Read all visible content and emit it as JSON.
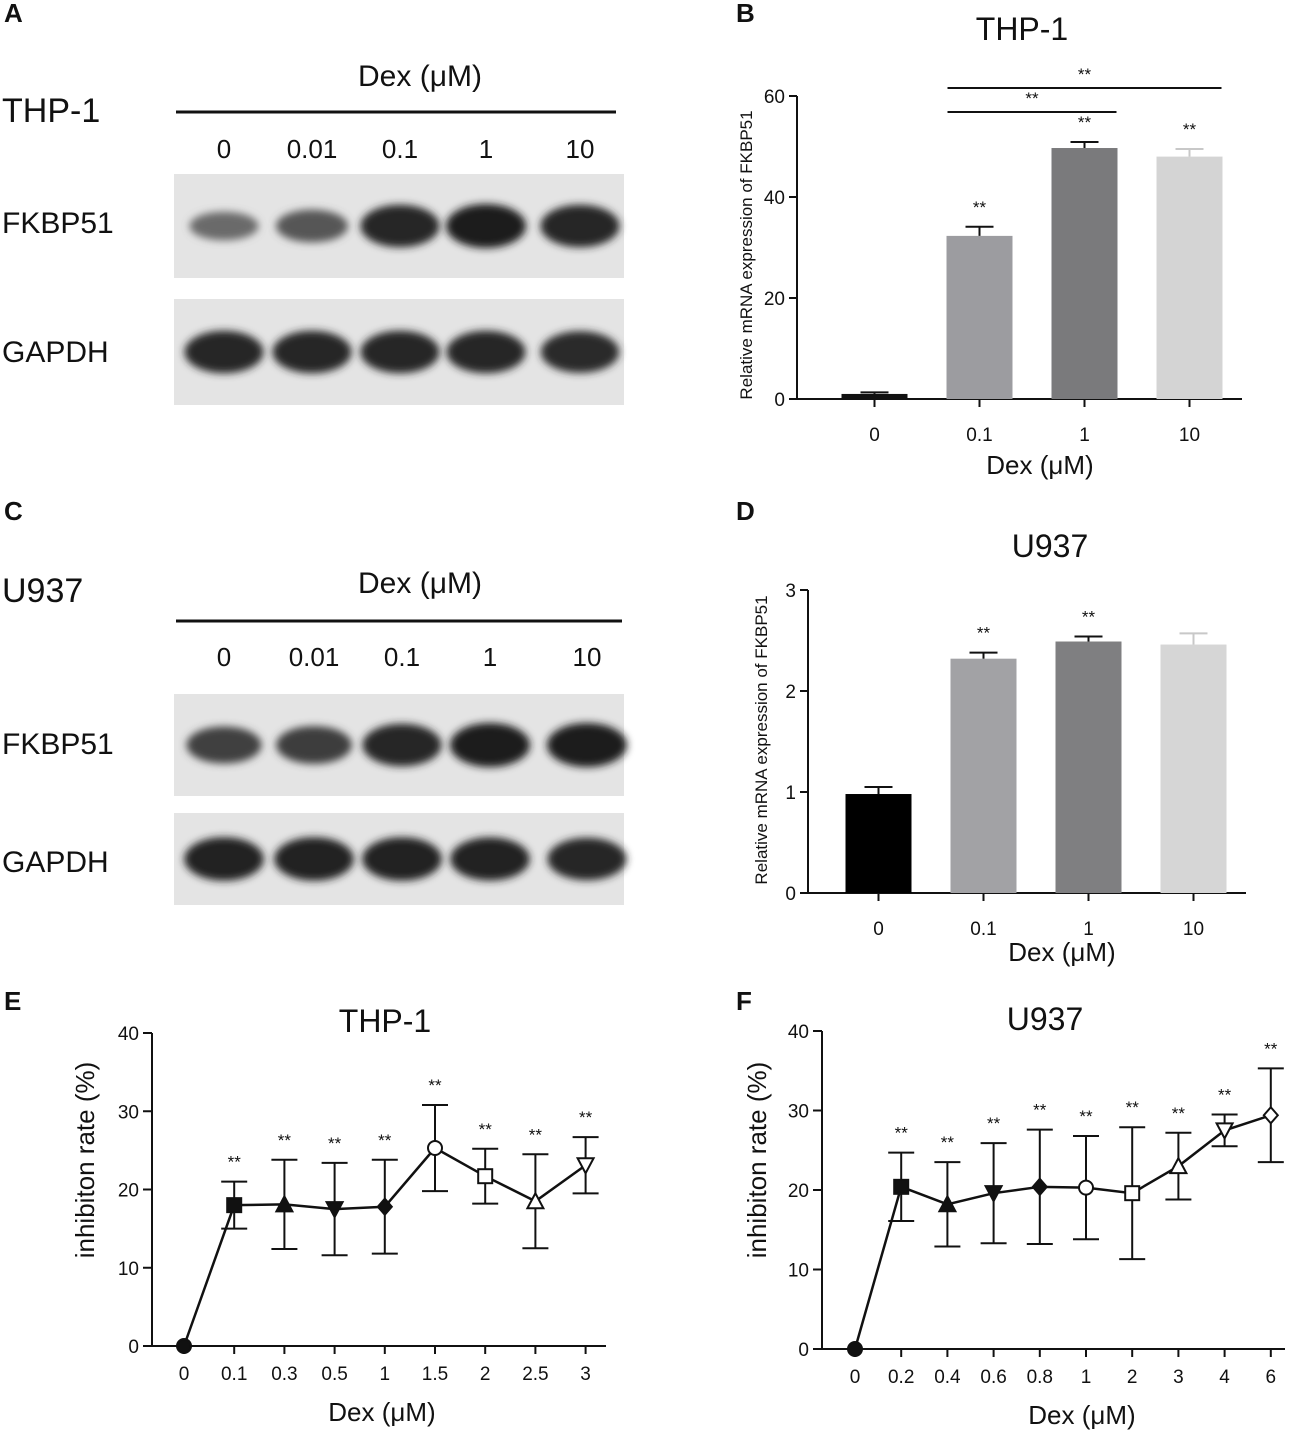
{
  "panels": {
    "A": "A",
    "B": "B",
    "C": "C",
    "D": "D",
    "E": "E",
    "F": "F"
  },
  "blots": [
    {
      "cell_line": "THP-1",
      "treatment_label": "Dex (μM)",
      "lanes": [
        "0",
        "0.01",
        "0.1",
        "1",
        "10"
      ],
      "rows": [
        {
          "name": "FKBP51",
          "intensity": [
            0.45,
            0.6,
            0.95,
            1.0,
            0.95
          ]
        },
        {
          "name": "GAPDH",
          "intensity": [
            0.95,
            0.95,
            0.95,
            0.95,
            0.92
          ]
        }
      ]
    },
    {
      "cell_line": "U937",
      "treatment_label": "Dex (μM)",
      "lanes": [
        "0",
        "0.01",
        "0.1",
        "1",
        "10"
      ],
      "rows": [
        {
          "name": "FKBP51",
          "intensity": [
            0.75,
            0.78,
            0.95,
            1.0,
            1.0
          ]
        },
        {
          "name": "GAPDH",
          "intensity": [
            0.98,
            0.98,
            0.98,
            0.97,
            0.95
          ]
        }
      ]
    }
  ],
  "chart_data": [
    {
      "type": "bar",
      "panel": "B",
      "title": "THP-1",
      "xlabel": "Dex (μM)",
      "ylabel": "Relative mRNA expression of FKBP51",
      "categories": [
        "0",
        "0.1",
        "1",
        "10"
      ],
      "values": [
        1,
        32.3,
        49.7,
        48.0
      ],
      "errors": [
        0.3,
        1.8,
        1.2,
        1.5
      ],
      "colors": [
        "#111111",
        "#9c9ca0",
        "#7a7a7c",
        "#d4d4d4"
      ],
      "significance": [
        "",
        "**",
        "**",
        "**"
      ],
      "brackets": [
        {
          "from": "0.1",
          "to": "1",
          "label": "**"
        },
        {
          "from": "0.1",
          "to": "10",
          "label": "**"
        }
      ],
      "ylim": [
        0,
        60
      ],
      "yticks": [
        0,
        20,
        40,
        60
      ]
    },
    {
      "type": "bar",
      "panel": "D",
      "title": "U937",
      "xlabel": "Dex (μM)",
      "ylabel": "Relative mRNA expression of FKBP51",
      "categories": [
        "0",
        "0.1",
        "1",
        "10"
      ],
      "values": [
        0.98,
        2.32,
        2.49,
        2.46
      ],
      "errors": [
        0.07,
        0.06,
        0.05,
        0.11
      ],
      "colors": [
        "#000000",
        "#a2a2a5",
        "#7f7f81",
        "#d6d6d6"
      ],
      "significance": [
        "",
        "**",
        "**",
        ""
      ],
      "ylim": [
        0,
        3
      ],
      "yticks": [
        0,
        1,
        2,
        3
      ]
    },
    {
      "type": "line",
      "panel": "E",
      "title": "THP-1",
      "xlabel": "Dex (μM)",
      "ylabel": "inhibiton rate (%)",
      "categories": [
        "0",
        "0.1",
        "0.3",
        "0.5",
        "1",
        "1.5",
        "2",
        "2.5",
        "3"
      ],
      "values": [
        0,
        18.0,
        18.1,
        17.5,
        17.8,
        25.3,
        21.7,
        18.5,
        23.1
      ],
      "errors": [
        0,
        3.0,
        5.7,
        5.9,
        6.0,
        5.5,
        3.5,
        6.0,
        3.6
      ],
      "markers": [
        "circle",
        "square",
        "triangle",
        "triangle-down",
        "diamond",
        "circle-open",
        "square-open",
        "triangle-open",
        "triangle-down-open"
      ],
      "significance": [
        "",
        "**",
        "**",
        "**",
        "**",
        "**",
        "**",
        "**",
        "**"
      ],
      "ylim": [
        0,
        40
      ],
      "yticks": [
        0,
        10,
        20,
        30,
        40
      ]
    },
    {
      "type": "line",
      "panel": "F",
      "title": "U937",
      "xlabel": "Dex (μM)",
      "ylabel": "inhibiton rate (%)",
      "categories": [
        "0",
        "0.2",
        "0.4",
        "0.6",
        "0.8",
        "1",
        "2",
        "3",
        "4",
        "6"
      ],
      "values": [
        0,
        20.4,
        18.2,
        19.6,
        20.4,
        20.3,
        19.6,
        23.0,
        27.5,
        29.4
      ],
      "errors": [
        0,
        4.3,
        5.3,
        6.3,
        7.2,
        6.5,
        8.3,
        4.2,
        2.0,
        5.9
      ],
      "markers": [
        "circle",
        "square",
        "triangle",
        "triangle-down",
        "diamond",
        "circle-open",
        "square-open",
        "triangle-open",
        "triangle-down-open",
        "diamond-open"
      ],
      "significance": [
        "",
        "**",
        "**",
        "**",
        "**",
        "**",
        "**",
        "**",
        "**",
        "**"
      ],
      "ylim": [
        0,
        40
      ],
      "yticks": [
        0,
        10,
        20,
        30,
        40
      ]
    }
  ]
}
